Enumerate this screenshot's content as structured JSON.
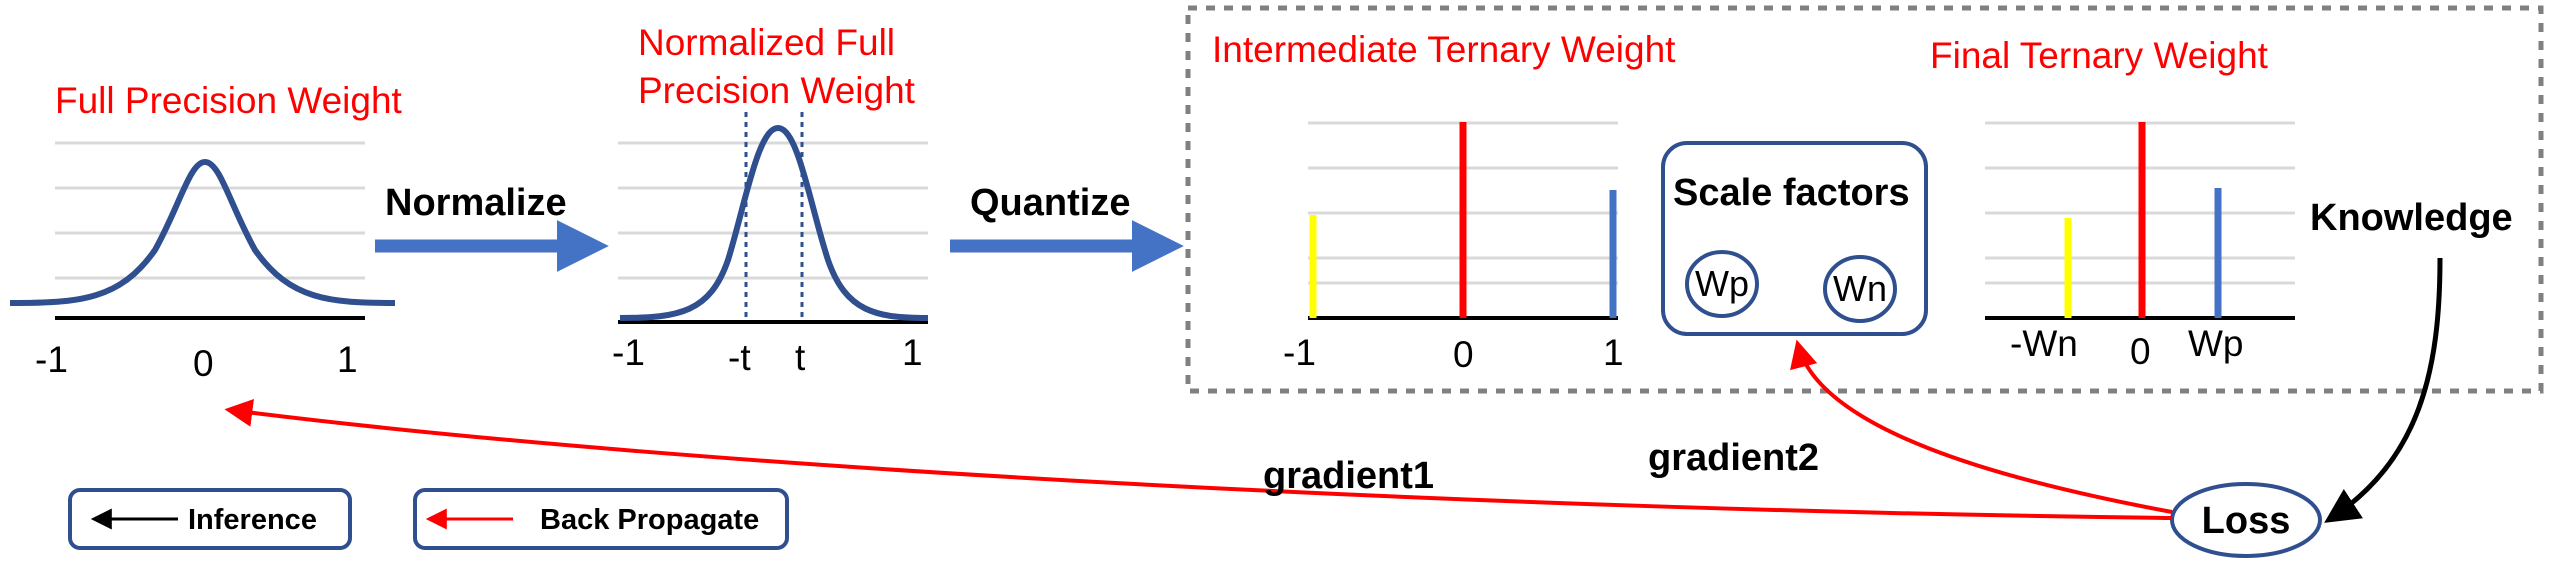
{
  "panels": {
    "full_precision": {
      "title": "Full Precision Weight",
      "ticks": [
        "-1",
        "0",
        "1"
      ]
    },
    "normalized": {
      "title_line1": "Normalized Full",
      "title_line2": "Precision Weight",
      "ticks": [
        "-1",
        "-t",
        "t",
        "1"
      ]
    },
    "intermediate": {
      "title": "Intermediate Ternary Weight",
      "ticks": [
        "-1",
        "0",
        "1"
      ]
    },
    "final": {
      "title": "Final Ternary Weight",
      "ticks": [
        "-Wn",
        "0",
        "Wp"
      ]
    }
  },
  "steps": {
    "normalize": "Normalize",
    "quantize": "Quantize"
  },
  "scale_factors": {
    "title": "Scale factors",
    "wp": "Wp",
    "wn": "Wn"
  },
  "knowledge": "Knowledge",
  "loss": "Loss",
  "gradients": {
    "g1": "gradient1",
    "g2": "gradient2"
  },
  "legend": {
    "inference": "Inference",
    "back_propagate": "Back Propagate"
  },
  "colors": {
    "title_red": "#ff0000",
    "curve_blue": "#2f4f8f",
    "step_arrow_blue": "#4472c4",
    "bar_red": "#ff0000",
    "bar_yellow": "#ffff00",
    "bar_blue": "#4472c4",
    "box_border": "#2f4f8f",
    "dashed_border": "#808080"
  }
}
